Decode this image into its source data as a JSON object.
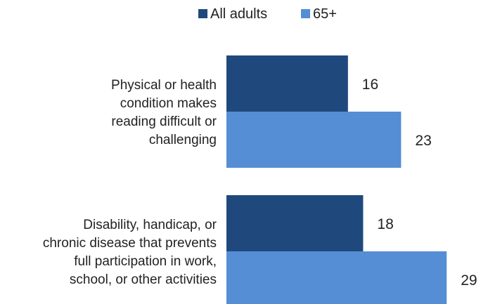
{
  "chart_data": {
    "type": "bar",
    "orientation": "horizontal",
    "categories": [
      [
        "Physical or health",
        "condition makes",
        "reading difficult or",
        "challenging"
      ],
      [
        "Disability, handicap, or",
        "chronic disease that prevents",
        "full participation in work,",
        "school, or other activities"
      ]
    ],
    "series": [
      {
        "name": "All adults",
        "color": "#1f497d",
        "values": [
          16,
          18
        ]
      },
      {
        "name": "65+",
        "color": "#558ed5",
        "values": [
          23,
          29
        ]
      }
    ],
    "xlim": [
      0,
      30
    ],
    "grid": false,
    "legend_position": "top-center"
  }
}
